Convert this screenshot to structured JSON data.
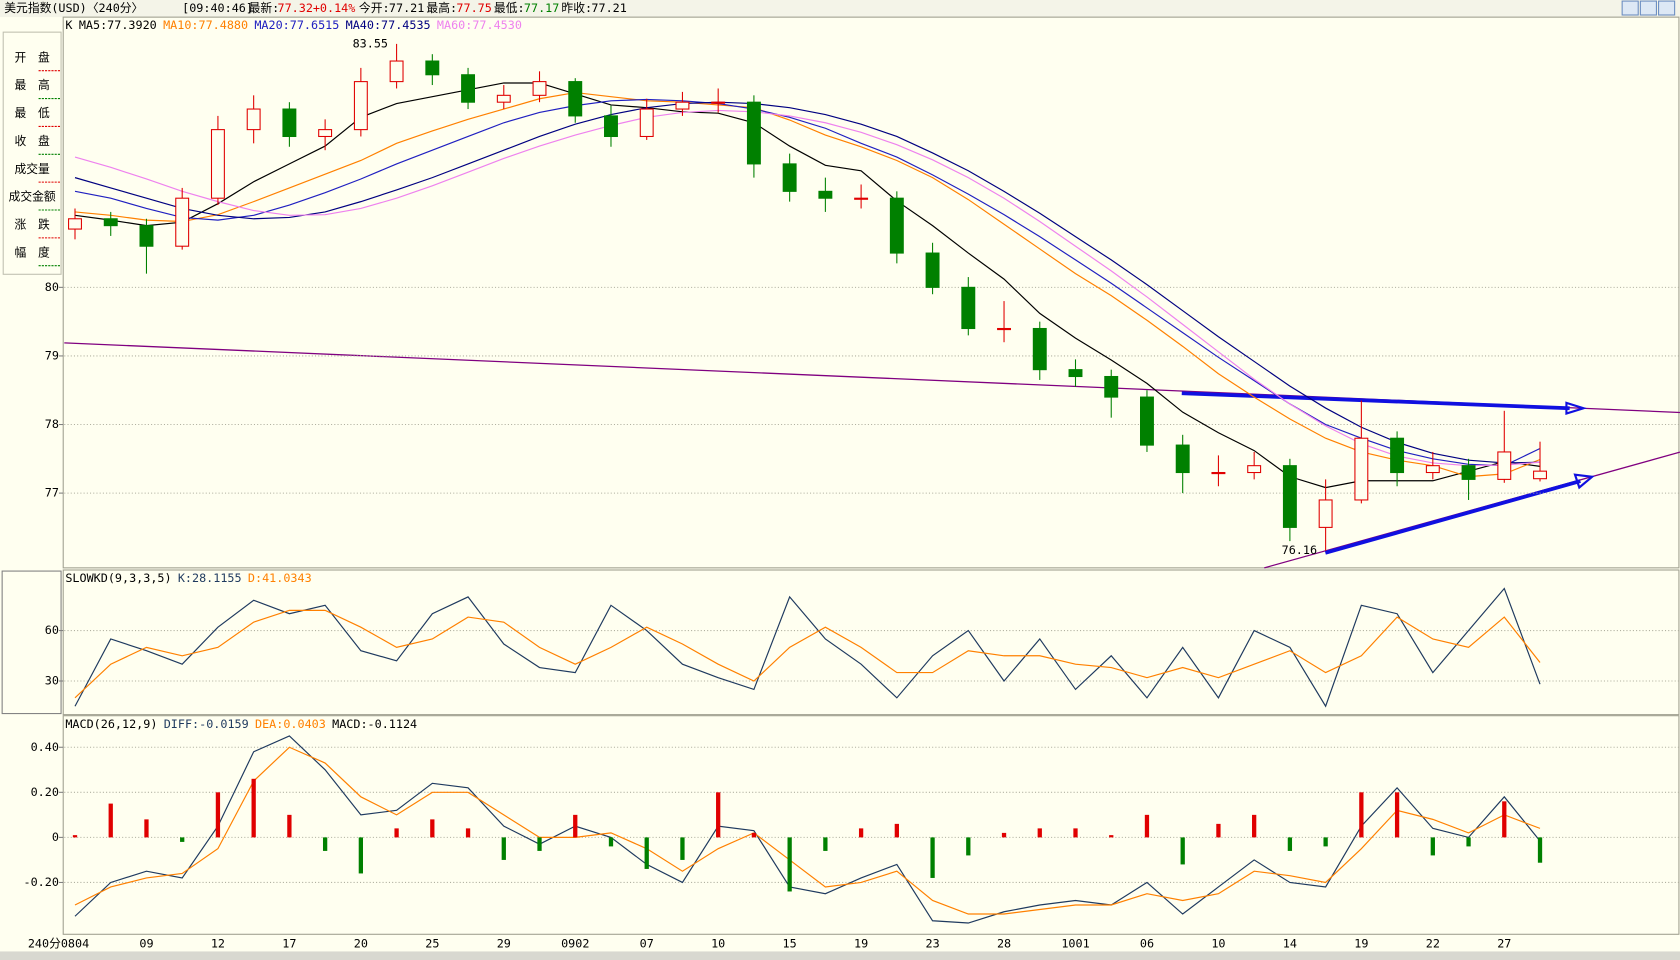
{
  "header": {
    "title": "美元指数(USD)〈240分〉",
    "time": "[09:40:46]",
    "last_label": "最新:",
    "last": "77.32",
    "change": "+0.14%",
    "open_label": "今开:",
    "open": "77.21",
    "high_label": "最高:",
    "high": "77.75",
    "low_label": "最低:",
    "low": "77.17",
    "prev_label": "昨收:",
    "prev": "77.21",
    "period": "240分"
  },
  "side_labels": [
    "开　盘",
    "最　高",
    "最　低",
    "收　盘",
    "成交量",
    "成交金额",
    "涨　跌",
    "幅　度"
  ],
  "chart_data": [
    {
      "type": "candlestick",
      "title": "K",
      "categories": [
        "0804",
        null,
        "09",
        null,
        "12",
        null,
        "17",
        null,
        "20",
        null,
        "25",
        null,
        "29",
        null,
        "0902",
        null,
        "07",
        null,
        "10",
        null,
        "15",
        null,
        "19",
        null,
        "23",
        null,
        "28",
        null,
        "1001",
        null,
        "06",
        null,
        "10",
        null,
        "14",
        null,
        "19",
        null,
        "22",
        null,
        "27",
        null
      ],
      "open": [
        80.85,
        81.0,
        80.9,
        80.6,
        81.3,
        82.3,
        82.6,
        82.2,
        82.3,
        83.0,
        83.3,
        83.1,
        82.7,
        82.8,
        83.0,
        82.5,
        82.2,
        82.6,
        82.7,
        82.7,
        81.8,
        81.4,
        81.3,
        81.3,
        80.5,
        80.0,
        79.4,
        79.4,
        78.8,
        78.7,
        78.4,
        77.7,
        77.3,
        77.3,
        77.4,
        76.5,
        76.9,
        77.8,
        77.3,
        77.4,
        77.2,
        77.21
      ],
      "high": [
        81.15,
        81.1,
        81.0,
        81.45,
        82.5,
        82.8,
        82.7,
        82.45,
        83.2,
        83.55,
        83.4,
        83.2,
        82.95,
        83.15,
        83.05,
        82.65,
        82.75,
        82.85,
        82.9,
        82.8,
        81.95,
        81.6,
        81.5,
        81.4,
        80.65,
        80.15,
        79.8,
        79.5,
        78.95,
        78.8,
        78.5,
        77.85,
        77.55,
        77.6,
        77.5,
        77.2,
        78.35,
        77.9,
        77.6,
        77.5,
        78.2,
        77.75
      ],
      "low": [
        80.7,
        80.75,
        80.2,
        80.55,
        81.2,
        82.1,
        82.05,
        82.0,
        82.2,
        82.9,
        82.95,
        82.6,
        82.6,
        82.7,
        82.4,
        82.05,
        82.15,
        82.5,
        82.55,
        81.6,
        81.25,
        81.1,
        81.15,
        80.35,
        79.9,
        79.3,
        79.2,
        78.65,
        78.55,
        78.1,
        77.6,
        77.0,
        77.1,
        77.2,
        76.3,
        76.16,
        76.85,
        77.1,
        77.2,
        76.9,
        77.15,
        77.17
      ],
      "close": [
        81.0,
        80.9,
        80.6,
        81.3,
        82.3,
        82.6,
        82.2,
        82.3,
        83.0,
        83.3,
        83.1,
        82.7,
        82.8,
        83.0,
        82.5,
        82.2,
        82.6,
        82.7,
        82.7,
        81.8,
        81.4,
        81.3,
        81.3,
        80.5,
        80.0,
        79.4,
        79.4,
        78.8,
        78.7,
        78.4,
        77.7,
        77.3,
        77.3,
        77.4,
        76.5,
        76.9,
        77.8,
        77.3,
        77.4,
        77.2,
        77.6,
        77.32
      ],
      "up_color": "#e00000",
      "down_color": "#008000",
      "series": [
        {
          "name": "MA5:77.3920",
          "color": "#000000",
          "values": [
            81.05,
            80.98,
            80.9,
            80.95,
            81.22,
            81.54,
            81.8,
            82.06,
            82.48,
            82.68,
            82.78,
            82.88,
            82.98,
            82.98,
            82.82,
            82.66,
            82.62,
            82.56,
            82.54,
            82.4,
            82.06,
            81.78,
            81.7,
            81.26,
            80.9,
            80.5,
            80.12,
            79.62,
            79.26,
            78.94,
            78.6,
            78.18,
            77.88,
            77.62,
            77.24,
            77.08,
            77.18,
            77.18,
            77.18,
            77.32,
            77.46,
            77.39
          ]
        },
        {
          "name": "MA10:77.4880",
          "color": "#ff8000",
          "values": [
            81.1,
            81.05,
            80.98,
            80.96,
            81.06,
            81.25,
            81.45,
            81.65,
            81.85,
            82.1,
            82.28,
            82.45,
            82.6,
            82.75,
            82.84,
            82.78,
            82.72,
            82.7,
            82.66,
            82.62,
            82.44,
            82.22,
            82.05,
            81.85,
            81.6,
            81.28,
            80.92,
            80.56,
            80.2,
            79.88,
            79.52,
            79.14,
            78.74,
            78.4,
            78.08,
            77.8,
            77.6,
            77.48,
            77.4,
            77.24,
            77.28,
            77.49
          ]
        },
        {
          "name": "MA20:77.6515",
          "color": "#2020c0",
          "values": [
            81.4,
            81.3,
            81.15,
            81.02,
            80.98,
            81.05,
            81.2,
            81.38,
            81.58,
            81.8,
            82.0,
            82.2,
            82.4,
            82.55,
            82.65,
            82.72,
            82.74,
            82.72,
            82.68,
            82.6,
            82.48,
            82.32,
            82.1,
            81.9,
            81.64,
            81.36,
            81.06,
            80.74,
            80.4,
            80.06,
            79.7,
            79.34,
            78.98,
            78.64,
            78.3,
            78.0,
            77.8,
            77.62,
            77.5,
            77.42,
            77.4,
            77.65
          ]
        },
        {
          "name": "MA40:77.4535",
          "color": "#000080",
          "values": [
            81.6,
            81.45,
            81.3,
            81.15,
            81.05,
            81.0,
            81.02,
            81.1,
            81.25,
            81.42,
            81.6,
            81.8,
            82.0,
            82.2,
            82.38,
            82.52,
            82.62,
            82.68,
            82.7,
            82.68,
            82.62,
            82.52,
            82.38,
            82.2,
            81.96,
            81.7,
            81.4,
            81.08,
            80.74,
            80.4,
            80.04,
            79.66,
            79.28,
            78.92,
            78.56,
            78.24,
            77.96,
            77.74,
            77.58,
            77.48,
            77.44,
            77.45
          ]
        },
        {
          "name": "MA60:77.4530",
          "color": "#ee82ee",
          "values": [
            81.9,
            81.75,
            81.58,
            81.4,
            81.25,
            81.12,
            81.05,
            81.06,
            81.15,
            81.3,
            81.48,
            81.68,
            81.88,
            82.06,
            82.22,
            82.36,
            82.48,
            82.55,
            82.58,
            82.56,
            82.5,
            82.4,
            82.26,
            82.08,
            81.86,
            81.6,
            81.3,
            80.96,
            80.6,
            80.24,
            79.86,
            79.46,
            79.06,
            78.66,
            78.3,
            77.98,
            77.72,
            77.54,
            77.44,
            77.4,
            77.41,
            77.45
          ]
        }
      ],
      "ylim": [
        75.91,
        83.94
      ],
      "yticks": [
        80,
        79,
        78,
        77
      ],
      "grid": true
    },
    {
      "type": "line",
      "title": "SLOWKD(9,3,3,5)",
      "series": [
        {
          "name": "K:28.1155",
          "color": "#1f3a5f",
          "values": [
            15,
            55,
            48,
            40,
            62,
            78,
            70,
            75,
            48,
            42,
            70,
            80,
            52,
            38,
            35,
            75,
            60,
            40,
            32,
            25,
            80,
            55,
            40,
            20,
            45,
            60,
            30,
            55,
            25,
            45,
            20,
            50,
            20,
            60,
            50,
            15,
            75,
            70,
            35,
            60,
            85,
            28.12
          ]
        },
        {
          "name": "D:41.0343",
          "color": "#ff8000",
          "values": [
            20,
            40,
            50,
            45,
            50,
            65,
            72,
            72,
            62,
            50,
            55,
            68,
            65,
            50,
            40,
            50,
            62,
            52,
            40,
            30,
            50,
            62,
            50,
            35,
            35,
            48,
            45,
            45,
            40,
            38,
            32,
            38,
            32,
            40,
            48,
            35,
            45,
            68,
            55,
            50,
            68,
            41.03
          ]
        }
      ],
      "ylim": [
        10,
        96
      ],
      "yticks": [
        60,
        30
      ],
      "grid": true
    },
    {
      "type": "macd",
      "title": "MACD(26,12,9)",
      "series": [
        {
          "name": "DIFF:-0.0159",
          "color": "#1f3a5f",
          "values": [
            -0.35,
            -0.2,
            -0.15,
            -0.18,
            0.05,
            0.38,
            0.45,
            0.3,
            0.1,
            0.12,
            0.24,
            0.22,
            0.05,
            -0.03,
            0.05,
            0.0,
            -0.12,
            -0.2,
            0.05,
            0.03,
            -0.22,
            -0.25,
            -0.18,
            -0.12,
            -0.37,
            -0.38,
            -0.33,
            -0.3,
            -0.28,
            -0.3,
            -0.2,
            -0.34,
            -0.22,
            -0.1,
            -0.2,
            -0.22,
            0.05,
            0.22,
            0.04,
            0.0,
            0.18,
            -0.016
          ]
        },
        {
          "name": "DEA:0.0403",
          "color": "#ff8000",
          "values": [
            -0.3,
            -0.22,
            -0.18,
            -0.16,
            -0.05,
            0.25,
            0.4,
            0.33,
            0.18,
            0.1,
            0.2,
            0.2,
            0.1,
            0.0,
            0.0,
            0.02,
            -0.05,
            -0.15,
            -0.05,
            0.02,
            -0.1,
            -0.22,
            -0.2,
            -0.15,
            -0.28,
            -0.34,
            -0.34,
            -0.32,
            -0.3,
            -0.3,
            -0.25,
            -0.28,
            -0.25,
            -0.15,
            -0.17,
            -0.2,
            -0.05,
            0.12,
            0.08,
            0.02,
            0.1,
            0.04
          ]
        },
        {
          "name": "MACD:-0.1124",
          "color": "#000000",
          "values": [
            0.01,
            0.15,
            0.08,
            -0.02,
            0.2,
            0.26,
            0.1,
            -0.06,
            -0.16,
            0.04,
            0.08,
            0.04,
            -0.1,
            -0.06,
            0.1,
            -0.04,
            -0.14,
            -0.1,
            0.2,
            0.02,
            -0.24,
            -0.06,
            0.04,
            0.06,
            -0.18,
            -0.08,
            0.02,
            0.04,
            0.04,
            0.01,
            0.1,
            -0.12,
            0.06,
            0.1,
            -0.06,
            -0.04,
            0.2,
            0.2,
            -0.08,
            -0.04,
            0.16,
            -0.1124
          ]
        }
      ],
      "up_color": "#e00000",
      "down_color": "#008000",
      "ylim": [
        -0.43,
        0.54
      ],
      "yticks": [
        {
          "value": 0.4,
          "label": "0.40"
        },
        {
          "value": 0.2,
          "label": "0.20"
        },
        0,
        {
          "value": -0.2,
          "label": "-0.20"
        }
      ],
      "grid": true
    }
  ]
}
